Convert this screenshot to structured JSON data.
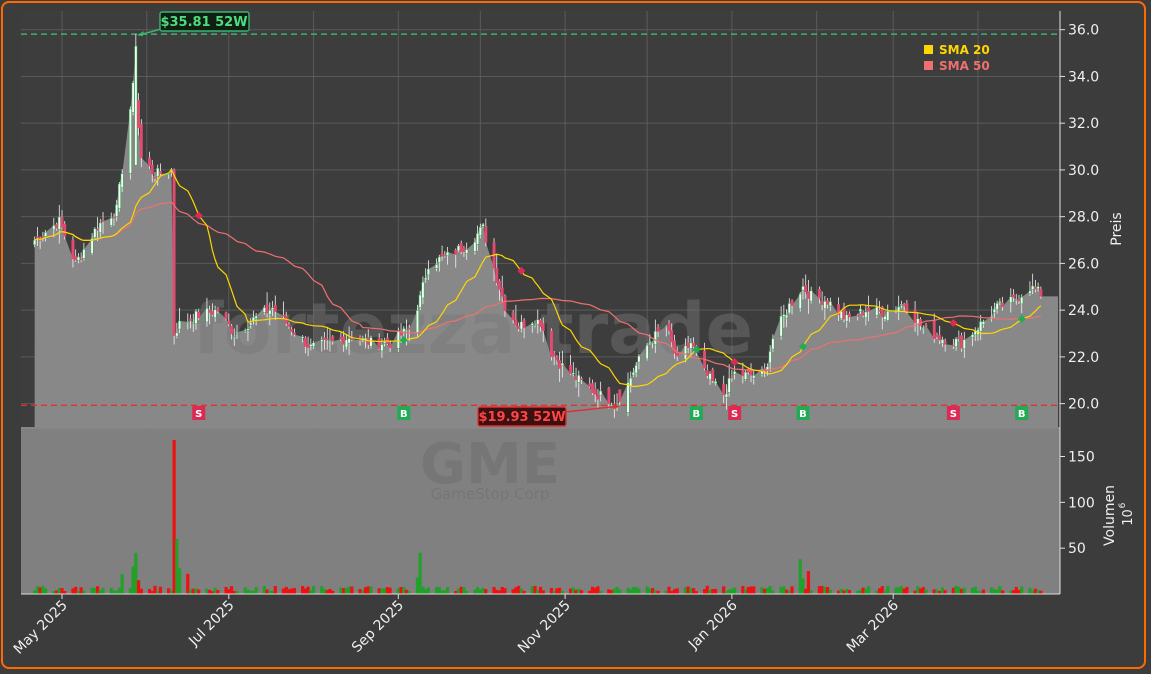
{
  "chart_data": {
    "type": "candlestick",
    "ticker": "GME",
    "company": "GameStop Corp",
    "watermark": "fortezza trade",
    "x_tick_labels": [
      "May 2025",
      "Jul 2025",
      "Sep 2025",
      "Nov 2025",
      "Jan 2026",
      "Mar 2026"
    ],
    "y_price_label": "Preis",
    "y_price_ticks": [
      "20.0",
      "22.0",
      "24.0",
      "26.0",
      "28.0",
      "30.0",
      "32.0",
      "34.0",
      "36.0"
    ],
    "y_price_range": [
      19.0,
      36.8
    ],
    "y_volume_label": "Volumen",
    "y_volume_exponent": "10",
    "y_volume_exponent_power": "6",
    "y_volume_ticks": [
      "50",
      "100",
      "150"
    ],
    "y_volume_range": [
      0,
      180
    ],
    "high_52w": {
      "label": "$35.81 52W",
      "value": 35.81,
      "date": "2025-05-28"
    },
    "low_52w": {
      "label": "$19.93 52W",
      "value": 19.93,
      "date": "2025-11-21"
    },
    "legend": [
      {
        "name": "SMA 20",
        "color": "#ffd700"
      },
      {
        "name": "SMA 50",
        "color": "#f07070"
      }
    ],
    "signals": [
      {
        "type": "S",
        "date": "2025-06-20"
      },
      {
        "type": "B",
        "date": "2025-09-03"
      },
      {
        "type": "S",
        "date": "2025-10-16"
      },
      {
        "type": "B",
        "date": "2025-12-19"
      },
      {
        "type": "S",
        "date": "2026-01-02"
      },
      {
        "type": "B",
        "date": "2026-01-27"
      },
      {
        "type": "S",
        "date": "2026-03-23"
      },
      {
        "type": "B",
        "date": "2026-04-17"
      }
    ],
    "close_anchors": [
      [
        "2025-04-21",
        27.0
      ],
      [
        "2025-04-30",
        27.8
      ],
      [
        "2025-05-06",
        26.0
      ],
      [
        "2025-05-14",
        27.6
      ],
      [
        "2025-05-21",
        28.3
      ],
      [
        "2025-05-27",
        33.5
      ],
      [
        "2025-05-28",
        33.2
      ],
      [
        "2025-05-30",
        30.5
      ],
      [
        "2025-06-04",
        29.8
      ],
      [
        "2025-06-10",
        30.0
      ],
      [
        "2025-06-11",
        23.0
      ],
      [
        "2025-06-13",
        23.4
      ],
      [
        "2025-06-20",
        23.8
      ],
      [
        "2025-06-27",
        24.0
      ],
      [
        "2025-07-03",
        23.0
      ],
      [
        "2025-07-10",
        23.6
      ],
      [
        "2025-07-17",
        24.1
      ],
      [
        "2025-07-24",
        23.2
      ],
      [
        "2025-07-31",
        22.4
      ],
      [
        "2025-08-08",
        22.6
      ],
      [
        "2025-08-15",
        22.9
      ],
      [
        "2025-08-22",
        22.6
      ],
      [
        "2025-08-29",
        22.6
      ],
      [
        "2025-09-05",
        23.2
      ],
      [
        "2025-09-09",
        24.5
      ],
      [
        "2025-09-12",
        26.0
      ],
      [
        "2025-09-19",
        26.3
      ],
      [
        "2025-09-26",
        26.8
      ],
      [
        "2025-10-02",
        27.5
      ],
      [
        "2025-10-06",
        25.8
      ],
      [
        "2025-10-10",
        24.2
      ],
      [
        "2025-10-15",
        23.3
      ],
      [
        "2025-10-20",
        23.6
      ],
      [
        "2025-10-23",
        23.5
      ],
      [
        "2025-10-27",
        22.2
      ],
      [
        "2025-10-31",
        21.6
      ],
      [
        "2025-11-06",
        21.0
      ],
      [
        "2025-11-13",
        20.4
      ],
      [
        "2025-11-21",
        20.0
      ],
      [
        "2025-11-26",
        21.4
      ],
      [
        "2025-12-02",
        22.7
      ],
      [
        "2025-12-08",
        23.3
      ],
      [
        "2025-12-12",
        21.8
      ],
      [
        "2025-12-17",
        22.6
      ],
      [
        "2025-12-22",
        21.3
      ],
      [
        "2025-12-29",
        20.4
      ],
      [
        "2026-01-02",
        21.3
      ],
      [
        "2026-01-07",
        21.2
      ],
      [
        "2026-01-13",
        21.3
      ],
      [
        "2026-01-16",
        22.8
      ],
      [
        "2026-01-22",
        24.2
      ],
      [
        "2026-01-27",
        25.0
      ],
      [
        "2026-01-30",
        24.6
      ],
      [
        "2026-02-05",
        24.4
      ],
      [
        "2026-02-12",
        23.6
      ],
      [
        "2026-02-19",
        24.0
      ],
      [
        "2026-02-26",
        23.9
      ],
      [
        "2026-03-05",
        24.3
      ],
      [
        "2026-03-12",
        23.2
      ],
      [
        "2026-03-19",
        22.8
      ],
      [
        "2026-03-26",
        22.6
      ],
      [
        "2026-04-02",
        23.4
      ],
      [
        "2026-04-08",
        24.1
      ],
      [
        "2026-04-14",
        24.4
      ],
      [
        "2026-04-20",
        25.0
      ],
      [
        "2026-04-24",
        24.7
      ]
    ],
    "volume_spikes": [
      [
        "2025-05-23",
        22
      ],
      [
        "2025-05-27",
        30
      ],
      [
        "2025-05-28",
        45
      ],
      [
        "2025-05-29",
        15
      ],
      [
        "2025-06-11",
        168
      ],
      [
        "2025-06-12",
        60
      ],
      [
        "2025-06-13",
        28
      ],
      [
        "2025-06-16",
        22
      ],
      [
        "2025-09-09",
        45
      ],
      [
        "2025-09-08",
        18
      ],
      [
        "2026-01-26",
        38
      ],
      [
        "2026-01-29",
        25
      ],
      [
        "2026-01-27",
        17
      ]
    ]
  }
}
